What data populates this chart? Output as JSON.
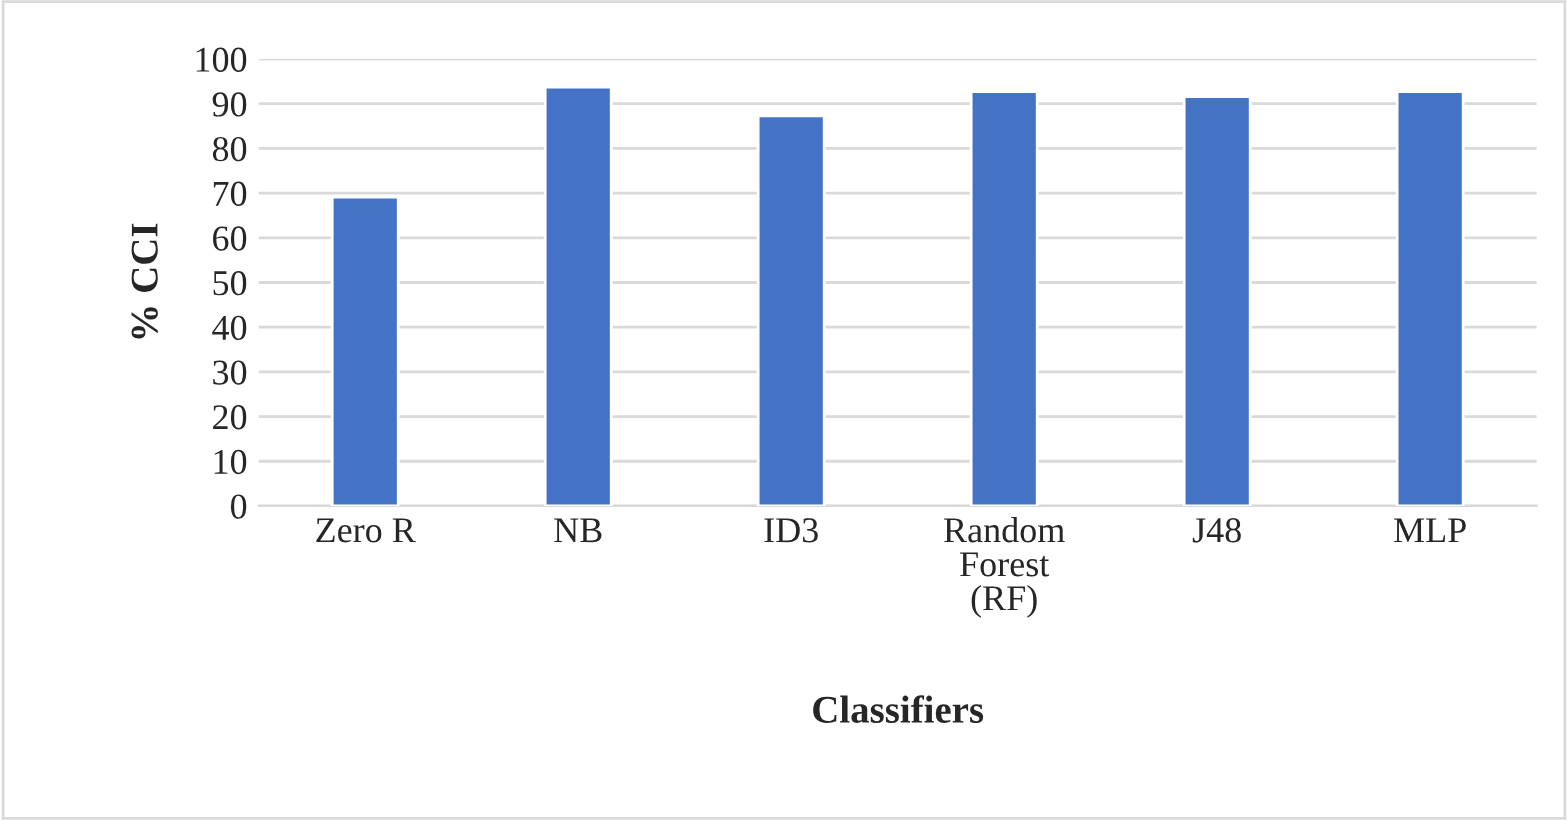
{
  "chart_data": {
    "type": "bar",
    "xlabel": "Classifiers",
    "ylabel": "% CCI",
    "categories": [
      "Zero R",
      "NB",
      "ID3",
      "Random\nForest\n(RF)",
      "J48",
      "MLP"
    ],
    "values": [
      69.1,
      93.7,
      87.3,
      92.7,
      91.6,
      92.7
    ],
    "color": "#4472c4",
    "ylim": [
      0,
      100
    ],
    "yticks": [
      0,
      10,
      20,
      30,
      40,
      50,
      60,
      70,
      80,
      90,
      100
    ],
    "grid": "y",
    "legend": false
  }
}
